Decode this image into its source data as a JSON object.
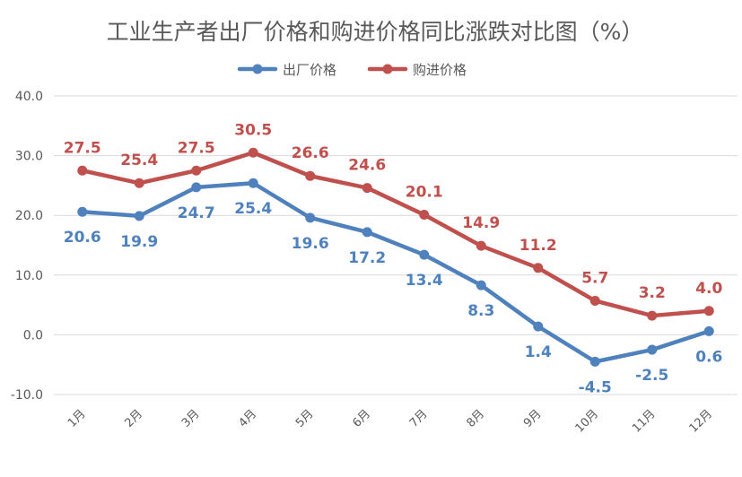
{
  "chart_data": {
    "type": "line",
    "title": "工业生产者出厂价格和购进价格同比涨跌对比图（%）",
    "categories": [
      "1月",
      "2月",
      "3月",
      "4月",
      "5月",
      "6月",
      "7月",
      "8月",
      "9月",
      "10月",
      "11月",
      "12月"
    ],
    "ylim": [
      -10,
      40
    ],
    "yticks": [
      "-10.0",
      "0.0",
      "10.0",
      "20.0",
      "30.0",
      "40.0"
    ],
    "grid": true,
    "legend_position": "top",
    "series": [
      {
        "name": "出厂价格",
        "color": "#4f81bd",
        "values": [
          20.6,
          19.9,
          24.7,
          25.4,
          19.6,
          17.2,
          13.4,
          8.3,
          1.4,
          -4.5,
          -2.5,
          0.6
        ],
        "labels": [
          "20.6",
          "19.9",
          "24.7",
          "25.4",
          "19.6",
          "17.2",
          "13.4",
          "8.3",
          "1.4",
          "-4.5",
          "-2.5",
          "0.6"
        ],
        "label_position": "below"
      },
      {
        "name": "购进价格",
        "color": "#c0504d",
        "values": [
          27.5,
          25.4,
          27.5,
          30.5,
          26.6,
          24.6,
          20.1,
          14.9,
          11.2,
          5.7,
          3.2,
          4.0
        ],
        "labels": [
          "27.5",
          "25.4",
          "27.5",
          "30.5",
          "26.6",
          "24.6",
          "20.1",
          "14.9",
          "11.2",
          "5.7",
          "3.2",
          "4.0"
        ],
        "label_position": "above"
      }
    ]
  }
}
